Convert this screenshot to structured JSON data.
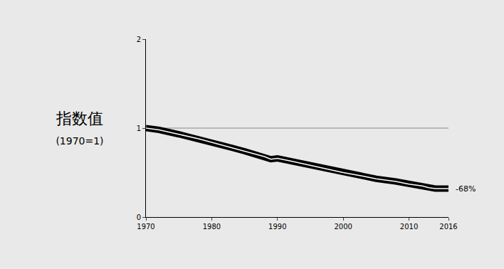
{
  "chart_data": {
    "type": "line",
    "ylabel": [
      "指数值",
      "(1970=1)"
    ],
    "x": [
      1970,
      1972,
      1975,
      1978,
      1980,
      1983,
      1985,
      1988,
      1989,
      1990,
      1992,
      1995,
      1998,
      2000,
      2003,
      2005,
      2008,
      2010,
      2012,
      2013,
      2014,
      2016
    ],
    "series": [
      {
        "name": "指数值",
        "color": "#000000",
        "values": [
          1.0,
          0.98,
          0.93,
          0.88,
          0.84,
          0.78,
          0.74,
          0.68,
          0.65,
          0.66,
          0.63,
          0.58,
          0.53,
          0.5,
          0.46,
          0.43,
          0.4,
          0.37,
          0.35,
          0.33,
          0.32,
          0.32
        ]
      }
    ],
    "baseline": 1,
    "annotations": [
      {
        "text": "-68%",
        "x": 2016,
        "y": 0.32
      }
    ],
    "xlim": [
      1970,
      2016
    ],
    "xticks": [
      1970,
      1980,
      1990,
      2000,
      2010,
      2016
    ],
    "ylim": [
      0,
      2
    ],
    "yticks": [
      0,
      1,
      2
    ],
    "grid": false
  }
}
